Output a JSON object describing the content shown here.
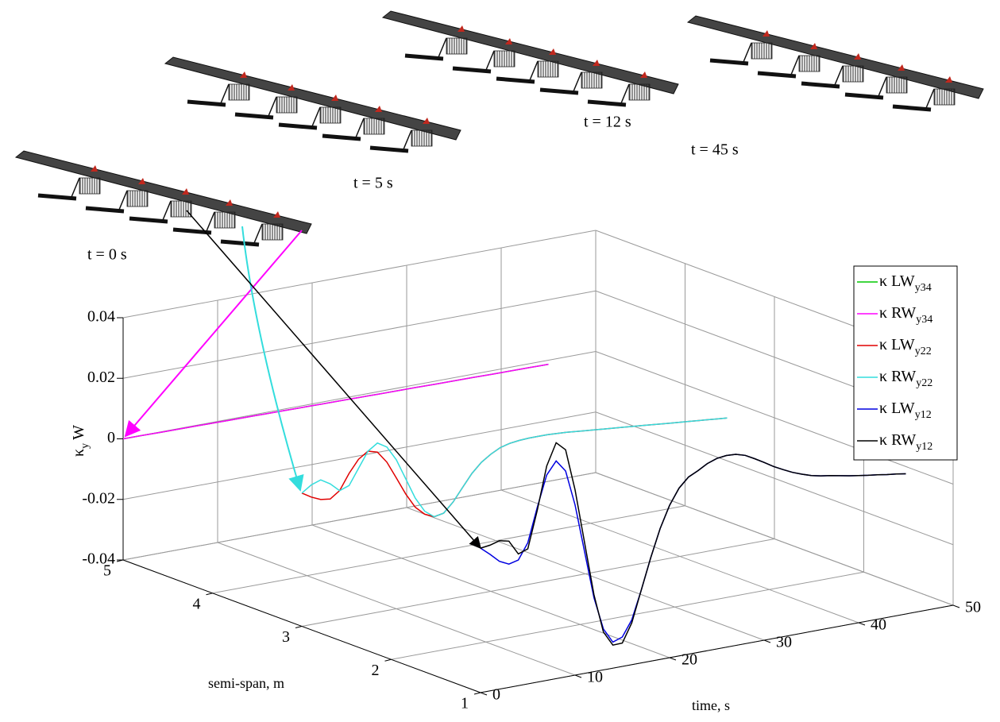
{
  "chart_data": {
    "type": "line3d",
    "xlabel": "time, s",
    "ylabel": "semi-span, m",
    "zlabel": {
      "text": "κ",
      "sub": "y",
      "after": "W"
    },
    "annotations": [
      "t = 0 s",
      "t = 5 s",
      "t = 12 s",
      "t = 45 s"
    ],
    "xlim": [
      0,
      50
    ],
    "xticks": [
      0,
      10,
      20,
      30,
      40,
      50
    ],
    "ylim": [
      1,
      5
    ],
    "yticks": [
      1,
      2,
      3,
      4,
      5
    ],
    "zlim": [
      -0.04,
      0.04
    ],
    "zticks": [
      -0.04,
      -0.02,
      0,
      0.02,
      0.04
    ],
    "grid": true,
    "legend": "top-right",
    "x": [
      0,
      1,
      2,
      3,
      4,
      5,
      6,
      7,
      8,
      9,
      10,
      11,
      12,
      13,
      14,
      15,
      16,
      17,
      18,
      19,
      20,
      21,
      22,
      23,
      24,
      25,
      26,
      27,
      28,
      29,
      30,
      31,
      32,
      33,
      34,
      35,
      36,
      37,
      38,
      39,
      40,
      41,
      42,
      43,
      44,
      45
    ],
    "series": [
      {
        "name": "κ LW",
        "subscript": "y34",
        "semispan": 5,
        "color": "#00c800",
        "values": [
          0,
          -3e-05,
          -6e-05,
          -9e-05,
          -0.00012,
          -0.00015,
          -0.00018,
          -0.00021,
          -0.00024,
          -0.00027,
          -0.0003,
          -0.00033,
          -0.00036,
          -0.00039,
          -0.00042,
          -0.00045,
          -0.00048,
          -0.00051,
          -0.00054,
          -0.00057,
          -0.0006,
          -0.00063,
          -0.00066,
          -0.00069,
          -0.00072,
          -0.00075,
          -0.00078,
          -0.00081,
          -0.00084,
          -0.00087,
          -0.0009,
          -0.00093,
          -0.00096,
          -0.00099,
          -0.00102,
          -0.00105,
          -0.00108,
          -0.00111,
          -0.00114,
          -0.00117,
          -0.0012,
          -0.00123,
          -0.00126,
          -0.00129,
          -0.00132,
          -0.00135
        ]
      },
      {
        "name": "κ RW",
        "subscript": "y34",
        "semispan": 5,
        "color": "#ff00ff",
        "values": [
          0,
          -3e-05,
          -6e-05,
          -9e-05,
          -0.00012,
          -0.00015,
          -0.00018,
          -0.00021,
          -0.00024,
          -0.00027,
          -0.0003,
          -0.00033,
          -0.00036,
          -0.00039,
          -0.00042,
          -0.00045,
          -0.00048,
          -0.00051,
          -0.00054,
          -0.00057,
          -0.0006,
          -0.00063,
          -0.00066,
          -0.00069,
          -0.00072,
          -0.00075,
          -0.00078,
          -0.00081,
          -0.00084,
          -0.00087,
          -0.0009,
          -0.00093,
          -0.00096,
          -0.00099,
          -0.00102,
          -0.00105,
          -0.00108,
          -0.00111,
          -0.00114,
          -0.00117,
          -0.0012,
          -0.00123,
          -0.00126,
          -0.00129,
          -0.00132,
          -0.00135
        ]
      },
      {
        "name": "κ LW",
        "subscript": "y22",
        "semispan": 3,
        "color": "#e00000",
        "values": [
          0.004,
          0.0021,
          0.0007,
          0.0003,
          0.0025,
          0.0076,
          0.0117,
          0.0138,
          0.0129,
          0.009,
          0.0032,
          -0.0027,
          -0.0076,
          -0.0105,
          -0.0119,
          -0.0113,
          -0.0082,
          -0.004,
          0.0001,
          0.0032,
          0.0053,
          0.0069,
          0.0077,
          0.0081,
          0.0083,
          0.0083,
          0.0083,
          0.0081,
          0.0079,
          0.0076,
          0.0073,
          0.007,
          0.0067,
          0.0064,
          0.0061,
          0.0058,
          0.0055,
          0.0052,
          0.0049,
          0.0046,
          0.0043,
          0.004,
          0.0037,
          0.0034,
          0.0031,
          0.0028
        ]
      },
      {
        "name": "κ RW",
        "subscript": "y22",
        "semispan": 3,
        "color": "#33dddd",
        "values": [
          0.004,
          0.0061,
          0.0072,
          0.0053,
          0.0025,
          0.0036,
          0.0087,
          0.0138,
          0.0159,
          0.014,
          0.0092,
          0.0023,
          -0.0046,
          -0.0095,
          -0.0119,
          -0.0113,
          -0.0082,
          -0.004,
          0.0001,
          0.0032,
          0.0053,
          0.0069,
          0.0077,
          0.0081,
          0.0083,
          0.0083,
          0.0083,
          0.0081,
          0.0079,
          0.0076,
          0.0073,
          0.007,
          0.0067,
          0.0064,
          0.0061,
          0.0058,
          0.0055,
          0.0052,
          0.0049,
          0.0046,
          0.0043,
          0.004,
          0.0037,
          0.0034,
          0.0031,
          0.0028
        ]
      },
      {
        "name": "κ LW",
        "subscript": "y12",
        "semispan": 1,
        "color": "#0000e0",
        "values": [
          0.0077,
          0.0051,
          0.0022,
          0.0007,
          0.0015,
          0.0066,
          0.0177,
          0.0278,
          0.0319,
          0.028,
          0.0162,
          0.0003,
          -0.0156,
          -0.0265,
          -0.0314,
          -0.0303,
          -0.0252,
          -0.016,
          -0.0059,
          0.0032,
          0.0103,
          0.0154,
          0.0185,
          0.02,
          0.0218,
          0.0229,
          0.0233,
          0.0231,
          0.0222,
          0.0205,
          0.0187,
          0.0168,
          0.0152,
          0.0137,
          0.0125,
          0.0115,
          0.0108,
          0.0103,
          0.0097,
          0.0091,
          0.0086,
          0.0081,
          0.0077,
          0.0072,
          0.0068,
          0.0063
        ]
      },
      {
        "name": "κ RW",
        "subscript": "y12",
        "semispan": 1,
        "color": "#000000",
        "values": [
          0.0077,
          0.0081,
          0.009,
          0.0083,
          0.0035,
          0.0046,
          0.0167,
          0.0308,
          0.0379,
          0.035,
          0.0212,
          0.0033,
          -0.0146,
          -0.0275,
          -0.0324,
          -0.0323,
          -0.0262,
          -0.016,
          -0.0059,
          0.0032,
          0.0103,
          0.0154,
          0.0185,
          0.02,
          0.0218,
          0.0229,
          0.0233,
          0.0231,
          0.0222,
          0.0205,
          0.0187,
          0.0168,
          0.0152,
          0.0137,
          0.0125,
          0.0115,
          0.0108,
          0.0103,
          0.0097,
          0.0091,
          0.0086,
          0.0081,
          0.0077,
          0.0072,
          0.0068,
          0.0063
        ]
      }
    ]
  }
}
